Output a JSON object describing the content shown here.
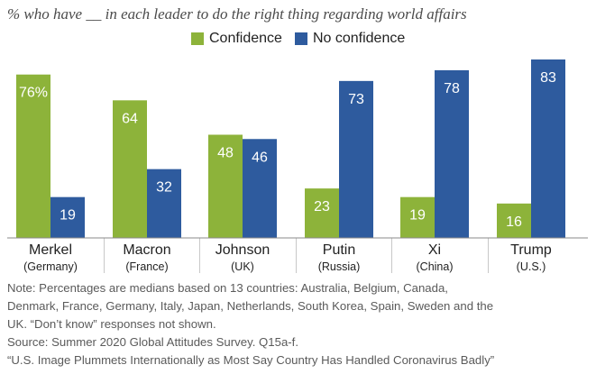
{
  "chart_data": {
    "type": "bar",
    "title": "% who have __ in each leader to do the right thing regarding world affairs",
    "categories": [
      "Merkel",
      "Macron",
      "Johnson",
      "Putin",
      "Xi",
      "Trump"
    ],
    "sublabels": [
      "(Germany)",
      "(France)",
      "(UK)",
      "(Russia)",
      "(China)",
      "(U.S.)"
    ],
    "series": [
      {
        "name": "Confidence",
        "color": "#8db33a",
        "values": [
          76,
          64,
          48,
          23,
          19,
          16
        ],
        "labels": [
          "76%",
          "64",
          "48",
          "23",
          "19",
          "16"
        ]
      },
      {
        "name": "No confidence",
        "color": "#2e5b9e",
        "values": [
          19,
          32,
          46,
          73,
          78,
          83
        ],
        "labels": [
          "19",
          "32",
          "46",
          "73",
          "78",
          "83"
        ]
      }
    ],
    "ylim": [
      0,
      90
    ],
    "grid": false,
    "legend": "top"
  },
  "notes": {
    "lines": [
      "Note: Percentages are medians based on 13 countries: Australia, Belgium, Canada,",
      "Denmark, France, Germany, Italy, Japan, Netherlands, South Korea, Spain, Sweden and the",
      "UK. “Don’t know” responses not shown.",
      "Source: Summer 2020 Global Attitudes Survey. Q15a-f.",
      "“U.S. Image Plummets Internationally as Most Say Country Has Handled Coronavirus Badly”"
    ]
  }
}
